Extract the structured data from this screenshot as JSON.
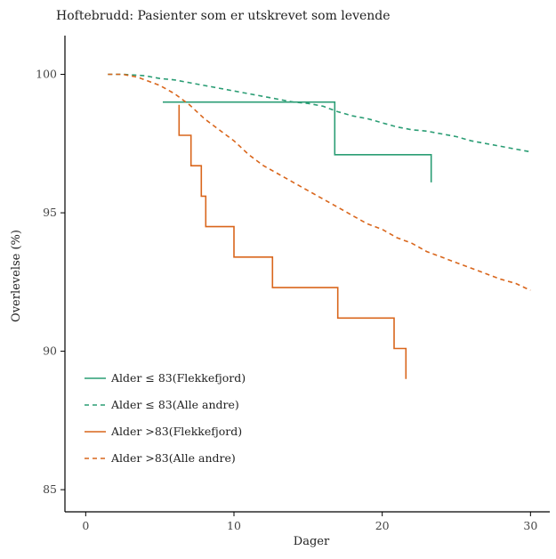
{
  "chart_data": {
    "type": "line",
    "title": "Hoftebrudd: Pasienter som er utskrevet som levende",
    "xlabel": "Dager",
    "ylabel": "Overlevelse (%)",
    "xlim": [
      -1.4,
      31.3
    ],
    "ylim": [
      84.2,
      101.4
    ],
    "xticks": [
      0,
      10,
      20,
      30
    ],
    "yticks": [
      85,
      90,
      95,
      100
    ],
    "grid": false,
    "legend_position": "bottom-left",
    "series": [
      {
        "name": "Alder ≤ 83(Flekkefjord)",
        "color": "#2a9d74",
        "dash": "solid",
        "step": true,
        "x": [
          5.2,
          16.8,
          16.8,
          23.3,
          23.3
        ],
        "y": [
          99.0,
          99.0,
          97.1,
          97.1,
          96.1
        ]
      },
      {
        "name": "Alder ≤ 83(Alle andre)",
        "color": "#2a9d74",
        "dash": "dashed",
        "step": false,
        "x": [
          1.5,
          2.5,
          4,
          5,
          6,
          7,
          8,
          9,
          10,
          11,
          12,
          13,
          14,
          15,
          16,
          17,
          18,
          19,
          20,
          21,
          22,
          23,
          24,
          25,
          26,
          27,
          28,
          29,
          30
        ],
        "y": [
          100.0,
          100.0,
          99.95,
          99.85,
          99.8,
          99.7,
          99.6,
          99.5,
          99.4,
          99.3,
          99.2,
          99.1,
          99.0,
          98.95,
          98.85,
          98.65,
          98.5,
          98.4,
          98.25,
          98.1,
          98.0,
          97.95,
          97.85,
          97.75,
          97.6,
          97.5,
          97.4,
          97.3,
          97.2
        ]
      },
      {
        "name": "Alder >83(Flekkefjord)",
        "color": "#d9661c",
        "dash": "solid",
        "step": true,
        "x": [
          6.3,
          6.3,
          7.1,
          7.1,
          7.8,
          7.8,
          8.1,
          8.1,
          10.0,
          10.0,
          12.6,
          12.6,
          17.0,
          17.0,
          20.8,
          20.8,
          21.6,
          21.6
        ],
        "y": [
          98.9,
          97.8,
          97.8,
          96.7,
          96.7,
          95.6,
          95.6,
          94.5,
          94.5,
          93.4,
          93.4,
          92.3,
          92.3,
          91.2,
          91.2,
          90.1,
          90.1,
          89.0
        ]
      },
      {
        "name": "Alder >83(Alle andre)",
        "color": "#d9661c",
        "dash": "dashed",
        "step": false,
        "x": [
          1.5,
          2.5,
          3.5,
          5,
          6,
          7,
          8,
          9,
          10,
          11,
          12,
          13,
          14,
          15,
          16,
          17,
          18,
          19,
          20,
          21,
          22,
          23,
          24,
          25,
          26,
          27,
          28,
          29,
          30
        ],
        "y": [
          100.0,
          100.0,
          99.9,
          99.6,
          99.3,
          98.9,
          98.4,
          98.0,
          97.6,
          97.1,
          96.7,
          96.4,
          96.1,
          95.8,
          95.5,
          95.2,
          94.9,
          94.6,
          94.4,
          94.1,
          93.9,
          93.6,
          93.4,
          93.2,
          93.0,
          92.8,
          92.6,
          92.45,
          92.2
        ]
      }
    ]
  }
}
